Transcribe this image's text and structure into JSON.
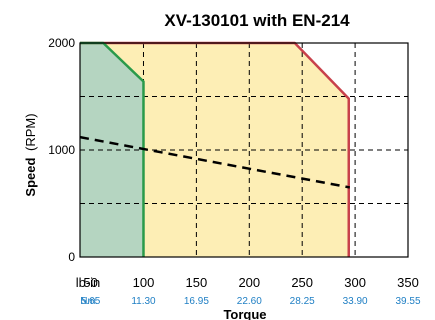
{
  "chart_data": {
    "type": "area",
    "title": "XV-130101 with EN-214",
    "ylabel_bold": "Speed",
    "ylabel_unit": "(RPM)",
    "xlabel": "Torque",
    "xlim": [
      40,
      350
    ],
    "ylim": [
      0,
      2000
    ],
    "y_ticks": [
      "0",
      "1000",
      "2000"
    ],
    "x_unit_primary": "lb-in",
    "x_unit_secondary": "Nm",
    "x_ticks": [
      {
        "lbin": "50",
        "nm": "5.65"
      },
      {
        "lbin": "100",
        "nm": "11.30"
      },
      {
        "lbin": "150",
        "nm": "16.95"
      },
      {
        "lbin": "200",
        "nm": "22.60"
      },
      {
        "lbin": "250",
        "nm": "28.25"
      },
      {
        "lbin": "300",
        "nm": "33.90"
      },
      {
        "lbin": "350",
        "nm": "39.55"
      }
    ],
    "grid": true,
    "series": [
      {
        "role": "intermittent",
        "fill": "#fdeeb5",
        "stroke": "#c8414b",
        "x": [
          40,
          243,
          294,
          294
        ],
        "y": [
          2000,
          2000,
          1480,
          0
        ]
      },
      {
        "role": "continuous",
        "fill": "#b5d5c1",
        "stroke": "#2a9a4a",
        "x": [
          40,
          62,
          100,
          100
        ],
        "y": [
          2000,
          2000,
          1640,
          0
        ]
      },
      {
        "role": "load-line",
        "stroke": "#000000",
        "dashed": true,
        "x": [
          40,
          295
        ],
        "y": [
          1120,
          650
        ]
      }
    ]
  }
}
